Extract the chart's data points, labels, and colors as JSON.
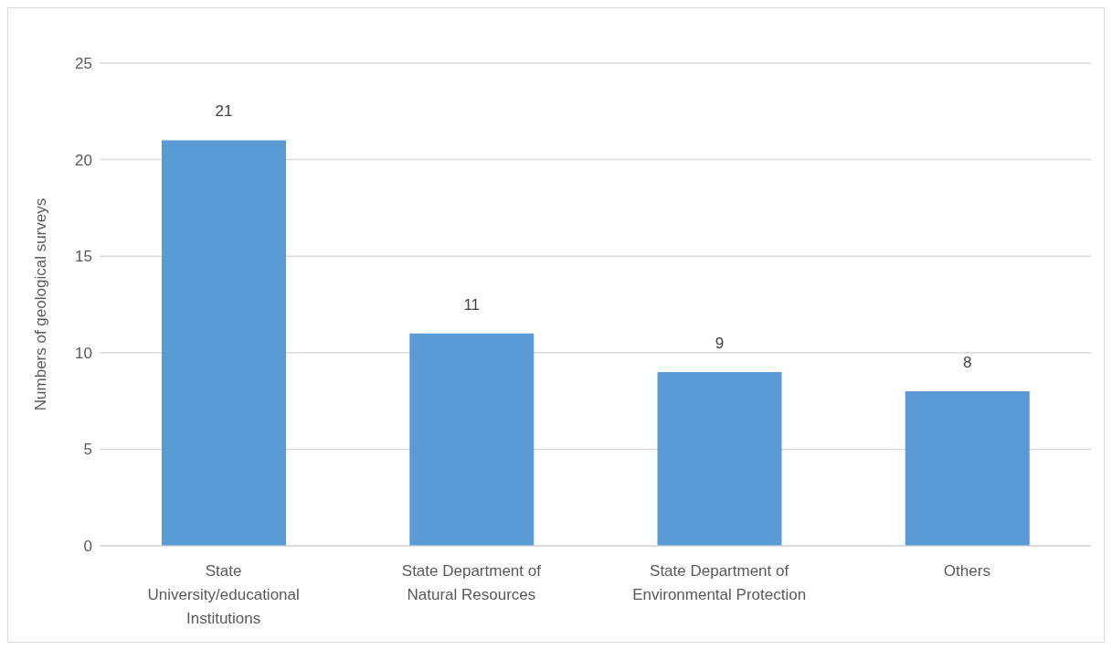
{
  "chart_data": {
    "type": "bar",
    "ylabel": "Numbers of geological surveys",
    "categories": [
      "State University/educational Institutions",
      "State Department of Natural Resources",
      "State Department of Environmental Protection",
      "Others"
    ],
    "values": [
      21,
      11,
      9,
      8
    ],
    "color": "#5b9bd5",
    "ylim": [
      0,
      25
    ],
    "yticks": [
      0,
      5,
      10,
      15,
      20,
      25
    ],
    "grid": "y",
    "data_labels": true
  }
}
